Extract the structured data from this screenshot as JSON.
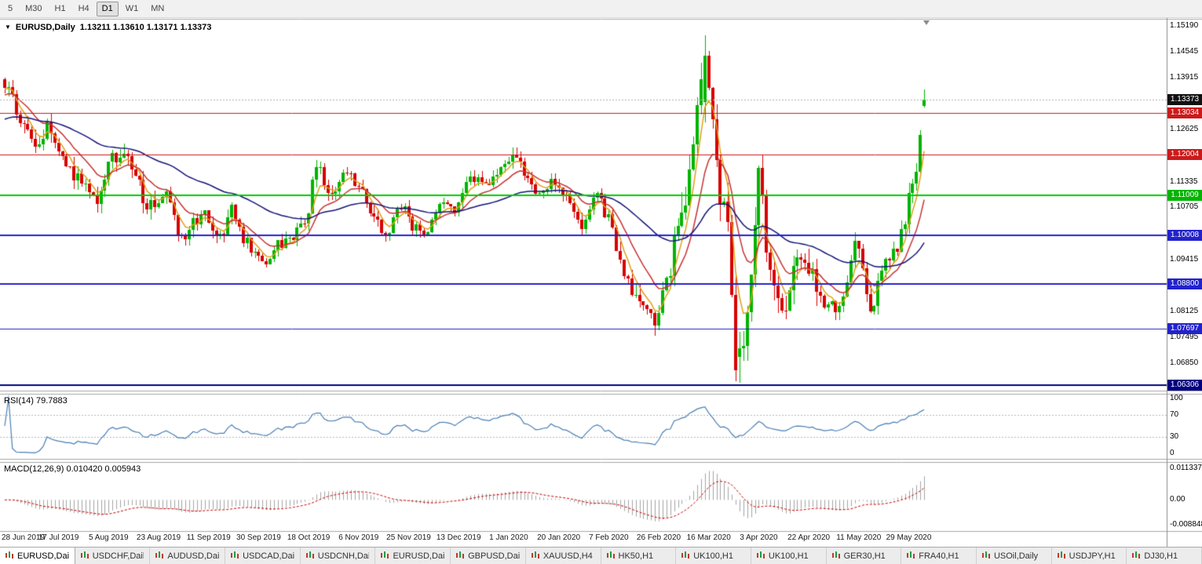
{
  "toolbar": {
    "timeframes": [
      {
        "label": "5",
        "active": false
      },
      {
        "label": "M30",
        "active": false
      },
      {
        "label": "H1",
        "active": false
      },
      {
        "label": "H4",
        "active": false
      },
      {
        "label": "D1",
        "active": true
      },
      {
        "label": "W1",
        "active": false
      },
      {
        "label": "MN",
        "active": false
      }
    ]
  },
  "chart": {
    "symbol_label": "EURUSD,Daily",
    "ohlc_text": "1.13211 1.13610 1.13171 1.13373",
    "price_axis_labels": [
      {
        "text": "1.15190",
        "value": 1.1519
      },
      {
        "text": "1.14545",
        "value": 1.14545
      },
      {
        "text": "1.13915",
        "value": 1.13915
      },
      {
        "text": "1.12625",
        "value": 1.12625
      },
      {
        "text": "1.11335",
        "value": 1.11335
      },
      {
        "text": "1.10705",
        "value": 1.10705
      },
      {
        "text": "1.09415",
        "value": 1.09415
      },
      {
        "text": "1.08125",
        "value": 1.08125
      },
      {
        "text": "1.07495",
        "value": 1.07495
      },
      {
        "text": "1.06850",
        "value": 1.0685
      }
    ],
    "price_badges": [
      {
        "text": "1.13373",
        "value": 1.13373,
        "bg": "#111111"
      },
      {
        "text": "1.13034",
        "value": 1.13034,
        "bg": "#cc1a1a"
      },
      {
        "text": "1.12004",
        "value": 1.12004,
        "bg": "#cc1a1a"
      },
      {
        "text": "1.11009",
        "value": 1.11009,
        "bg": "#00b400"
      },
      {
        "text": "1.10008",
        "value": 1.10008,
        "bg": "#2222cc"
      },
      {
        "text": "1.08800",
        "value": 1.088,
        "bg": "#2222cc"
      },
      {
        "text": "1.07697",
        "value": 1.07697,
        "bg": "#2222cc"
      },
      {
        "text": "1.06306",
        "value": 1.06306,
        "bg": "#000080"
      }
    ],
    "hlines": [
      {
        "value": 1.13034,
        "color": "#cc1a1a",
        "width": 1
      },
      {
        "value": 1.12004,
        "color": "#cc1a1a",
        "width": 1
      },
      {
        "value": 1.11009,
        "color": "#00cc00",
        "width": 2
      },
      {
        "value": 1.10008,
        "color": "#2222cc",
        "width": 2
      },
      {
        "value": 1.088,
        "color": "#2222cc",
        "width": 2
      },
      {
        "value": 1.07697,
        "color": "#2222cc",
        "width": 1
      },
      {
        "value": 1.06306,
        "color": "#000080",
        "width": 2
      }
    ],
    "bid_line": {
      "value": 1.13373,
      "color": "#b0b0b0"
    }
  },
  "rsi": {
    "label": "RSI(14) 79.7883",
    "period": 14,
    "color": "#4a7fb5",
    "levels": [
      70,
      30
    ],
    "axis_labels": [
      {
        "text": "100",
        "value": 100
      },
      {
        "text": "70",
        "value": 70
      },
      {
        "text": "30",
        "value": 30
      },
      {
        "text": "0",
        "value": 0
      }
    ]
  },
  "macd": {
    "label": "MACD(12,26,9) 0.010420 0.005943",
    "fast": 12,
    "slow": 26,
    "signal": 9,
    "hist_color": "#a4a4a4",
    "signal_color": "#cc0000",
    "axis_labels": [
      {
        "text": "0.011337",
        "value": 0.011337
      },
      {
        "text": "0.00",
        "value": 0
      },
      {
        "text": "-0.008848",
        "value": -0.008848
      }
    ]
  },
  "x_axis": {
    "labels": [
      "28 Jun 2019",
      "17 Jul 2019",
      "5 Aug 2019",
      "23 Aug 2019",
      "11 Sep 2019",
      "30 Sep 2019",
      "18 Oct 2019",
      "6 Nov 2019",
      "25 Nov 2019",
      "13 Dec 2019",
      "1 Jan 2020",
      "20 Jan 2020",
      "7 Feb 2020",
      "26 Feb 2020",
      "16 Mar 2020",
      "3 Apr 2020",
      "22 Apr 2020",
      "11 May 2020",
      "29 May 2020"
    ]
  },
  "tabs": [
    {
      "label": "EURUSD,Daily",
      "active": true
    },
    {
      "label": "USDCHF,Daily",
      "active": false
    },
    {
      "label": "AUDUSD,Daily",
      "active": false
    },
    {
      "label": "USDCAD,Daily",
      "active": false
    },
    {
      "label": "USDCNH,Daily",
      "active": false
    },
    {
      "label": "EURUSD,Daily",
      "active": false
    },
    {
      "label": "GBPUSD,Daily",
      "active": false
    },
    {
      "label": "XAUUSD,H4",
      "active": false
    },
    {
      "label": "HK50,H1",
      "active": false
    },
    {
      "label": "UK100,H1",
      "active": false
    },
    {
      "label": "UK100,H1",
      "active": false
    },
    {
      "label": "GER30,H1",
      "active": false
    },
    {
      "label": "FRA40,H1",
      "active": false
    },
    {
      "label": "USOil,Daily",
      "active": false
    },
    {
      "label": "USDJPY,H1",
      "active": false
    },
    {
      "label": "DJ30,H1",
      "active": false
    }
  ],
  "chart_data": {
    "type": "candlestick",
    "symbol": "EURUSD",
    "timeframe": "Daily",
    "bars": 240,
    "seed": 7,
    "up_color": "#00b400",
    "down_color": "#d80000",
    "clamp": [
      1.064,
      1.1492
    ],
    "price_range_top": 1.1519,
    "price_range_bottom": 1.06306,
    "vol_zones": [
      [
        0,
        0.0038
      ],
      [
        40,
        0.0032
      ],
      [
        100,
        0.0026
      ],
      [
        130,
        0.0028
      ],
      [
        158,
        0.0042
      ],
      [
        176,
        0.009
      ],
      [
        197,
        0.0058
      ],
      [
        212,
        0.0038
      ],
      [
        233,
        0.0042
      ]
    ],
    "anchors": [
      [
        0,
        1.137
      ],
      [
        5,
        1.128
      ],
      [
        8,
        1.1208
      ],
      [
        11,
        1.127
      ],
      [
        14,
        1.1225
      ],
      [
        18,
        1.1152
      ],
      [
        21,
        1.1128
      ],
      [
        24,
        1.1078
      ],
      [
        28,
        1.12
      ],
      [
        31,
        1.1196
      ],
      [
        34,
        1.114
      ],
      [
        37,
        1.1078
      ],
      [
        40,
        1.1086
      ],
      [
        42,
        1.11
      ],
      [
        46,
        1.099
      ],
      [
        49,
        1.1034
      ],
      [
        52,
        1.1048
      ],
      [
        54,
        1.101
      ],
      [
        57,
        1.1003
      ],
      [
        59,
        1.1073
      ],
      [
        62,
        1.0992
      ],
      [
        66,
        1.094
      ],
      [
        68,
        1.093
      ],
      [
        71,
        1.098
      ],
      [
        75,
        1.1003
      ],
      [
        78,
        1.1033
      ],
      [
        81,
        1.117
      ],
      [
        85,
        1.1105
      ],
      [
        89,
        1.1151
      ],
      [
        92,
        1.1127
      ],
      [
        95,
        1.105
      ],
      [
        99,
        1.1007
      ],
      [
        103,
        1.1077
      ],
      [
        106,
        1.1022
      ],
      [
        110,
        1.1009
      ],
      [
        113,
        1.1082
      ],
      [
        117,
        1.1065
      ],
      [
        120,
        1.1131
      ],
      [
        122,
        1.1143
      ],
      [
        125,
        1.1122
      ],
      [
        130,
        1.1177
      ],
      [
        132,
        1.1212
      ],
      [
        135,
        1.116
      ],
      [
        139,
        1.1105
      ],
      [
        142,
        1.1128
      ],
      [
        146,
        1.1095
      ],
      [
        150,
        1.1025
      ],
      [
        154,
        1.1093
      ],
      [
        157,
        1.1045
      ],
      [
        161,
        1.0911
      ],
      [
        165,
        1.0832
      ],
      [
        169,
        1.0786
      ],
      [
        172,
        1.088
      ],
      [
        175,
        1.1026
      ],
      [
        178,
        1.1135
      ],
      [
        180,
        1.1284
      ],
      [
        182,
        1.1446
      ],
      [
        184,
        1.1271
      ],
      [
        186,
        1.1105
      ],
      [
        188,
        1.0995
      ],
      [
        190,
        1.0692
      ],
      [
        192,
        1.0725
      ],
      [
        194,
        1.0885
      ],
      [
        196,
        1.114
      ],
      [
        199,
        1.092
      ],
      [
        202,
        1.079
      ],
      [
        206,
        1.093
      ],
      [
        209,
        1.091
      ],
      [
        211,
        1.0875
      ],
      [
        214,
        1.082
      ],
      [
        217,
        1.083
      ],
      [
        219,
        1.0875
      ],
      [
        221,
        1.098
      ],
      [
        222,
        1.096
      ],
      [
        225,
        1.08
      ],
      [
        228,
        1.0924
      ],
      [
        230,
        1.095
      ],
      [
        232,
        1.0963
      ],
      [
        234,
        1.104
      ],
      [
        235,
        1.1101
      ],
      [
        236,
        1.1134
      ],
      [
        237,
        1.1173
      ],
      [
        238,
        1.1234
      ],
      [
        239,
        1.13373
      ]
    ],
    "forced": {
      "182": [
        1.133,
        1.1495,
        1.128,
        1.1446
      ],
      "191": [
        1.07,
        1.0762,
        1.0636,
        1.0722
      ],
      "239": [
        1.13211,
        1.1361,
        1.13171,
        1.13373
      ]
    },
    "moving_averages": [
      {
        "period": 5,
        "color": "#e0a018",
        "seed": 1.136
      },
      {
        "period": 13,
        "color": "#c83232",
        "seed": 1.1345
      },
      {
        "period": 50,
        "color": "#14147a",
        "seed": 1.1285
      }
    ]
  }
}
